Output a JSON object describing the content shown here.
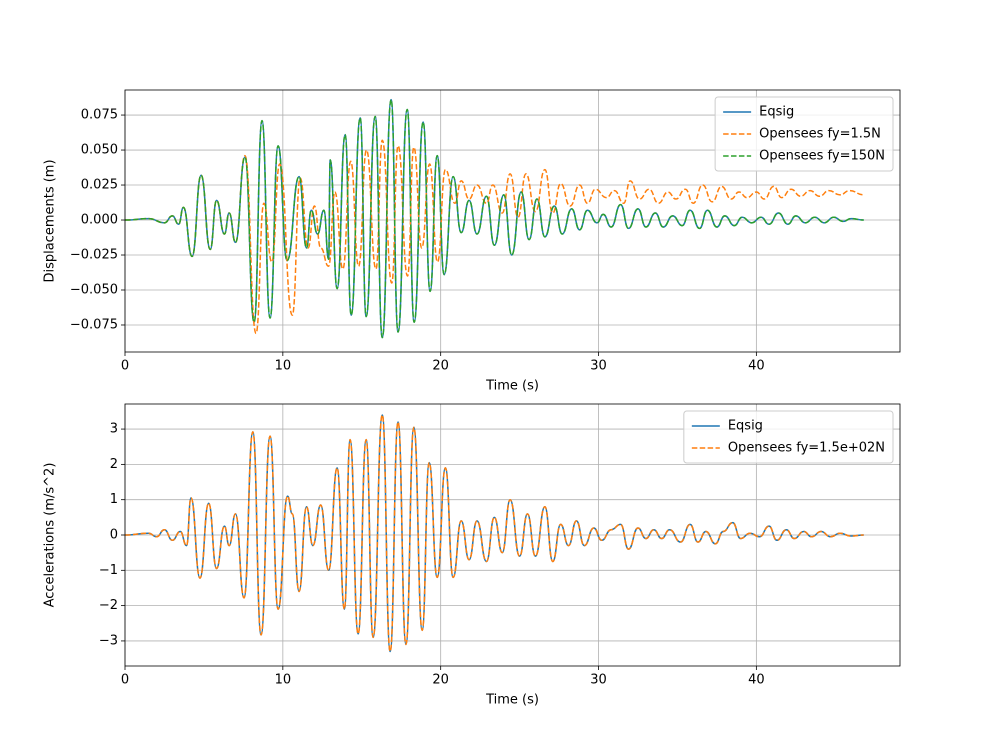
{
  "chart_data": [
    {
      "type": "line",
      "xlabel": "Time (s)",
      "ylabel": "Displacements (m)",
      "xlim": [
        0,
        49.1
      ],
      "ylim": [
        -0.0943,
        0.0929
      ],
      "xticks": [
        0,
        10,
        20,
        30,
        40
      ],
      "yticks": [
        {
          "value": -0.075,
          "label": "−0.075"
        },
        {
          "value": -0.05,
          "label": "−0.050"
        },
        {
          "value": -0.025,
          "label": "−0.025"
        },
        {
          "value": 0,
          "label": "0.000"
        },
        0.025,
        {
          "value": 0.05,
          "label": "0.050"
        },
        0.075
      ],
      "grid": true,
      "legend": "upper right",
      "series": [
        {
          "name": "Eqsig",
          "color": "#1f77b4",
          "dash": "solid",
          "x": [
            0,
            1.5,
            2.5,
            3.0,
            3.4,
            3.7,
            4.25,
            4.82,
            5.4,
            5.8,
            6.3,
            6.6,
            7.0,
            7.6,
            8.18,
            8.68,
            9.19,
            9.7,
            10.27,
            11.03,
            11.5,
            11.8,
            12.2,
            12.6,
            12.9,
            13.0,
            13.44,
            13.95,
            14.33,
            14.9,
            15.28,
            15.85,
            16.3,
            16.86,
            17.3,
            17.88,
            18.32,
            18.89,
            19.33,
            19.78,
            20.22,
            20.79,
            21.3,
            21.8,
            22.3,
            22.9,
            23.4,
            24.0,
            24.5,
            25.1,
            25.6,
            26.1,
            26.6,
            27.2,
            27.7,
            28.3,
            28.8,
            29.3,
            29.9,
            30.3,
            30.8,
            31.4,
            31.9,
            32.5,
            33.0,
            33.6,
            34.1,
            34.7,
            35.3,
            35.8,
            36.4,
            36.9,
            37.5,
            38.0,
            38.6,
            39.1,
            39.7,
            40.3,
            40.8,
            41.4,
            42.0,
            42.5,
            43.1,
            43.7,
            44.3,
            44.9,
            45.5,
            46.0,
            46.8
          ],
          "values": [
            0,
            0.001,
            -0.002,
            0.003,
            -0.003,
            0.009,
            -0.026,
            0.032,
            -0.021,
            0.014,
            -0.01,
            0.005,
            -0.016,
            0.045,
            -0.073,
            0.071,
            -0.07,
            0.053,
            -0.029,
            0.031,
            -0.02,
            0.007,
            -0.01,
            0.007,
            -0.028,
            0.043,
            -0.049,
            0.061,
            -0.068,
            0.073,
            -0.069,
            0.074,
            -0.084,
            0.086,
            -0.08,
            0.079,
            -0.073,
            0.07,
            -0.051,
            0.046,
            -0.039,
            0.031,
            -0.009,
            0.014,
            -0.01,
            0.017,
            -0.018,
            0.018,
            -0.025,
            0.02,
            -0.014,
            0.015,
            -0.012,
            0.01,
            -0.01,
            0.008,
            -0.007,
            0.007,
            -0.002,
            0.004,
            -0.005,
            0.011,
            -0.006,
            0.008,
            -0.005,
            0.005,
            -0.005,
            0.003,
            -0.004,
            0.007,
            -0.006,
            0.007,
            -0.005,
            0.003,
            -0.004,
            0.002,
            -0.002,
            0.002,
            -0.003,
            0.005,
            -0.003,
            0.003,
            -0.002,
            0.002,
            -0.002,
            0.002,
            -0.001,
            0.001,
            0
          ]
        },
        {
          "name": "Opensees fy=1.5N",
          "color": "#ff7f0e",
          "dash": "dashed",
          "x": [
            0,
            1.5,
            2.5,
            3.0,
            3.4,
            3.7,
            4.25,
            4.82,
            5.4,
            5.8,
            6.3,
            6.6,
            7.0,
            7.6,
            8.3,
            8.8,
            9.3,
            9.8,
            10.6,
            11.1,
            11.6,
            12.0,
            12.4,
            12.9,
            13.3,
            13.8,
            14.3,
            14.8,
            15.3,
            15.9,
            16.3,
            16.9,
            17.3,
            17.9,
            18.3,
            18.8,
            19.3,
            19.8,
            20.3,
            20.9,
            21.3,
            21.8,
            22.3,
            22.9,
            23.3,
            23.9,
            24.4,
            24.9,
            25.4,
            26.0,
            26.6,
            27.1,
            27.6,
            28.2,
            28.8,
            29.3,
            29.8,
            30.5,
            31.0,
            31.6,
            32.0,
            32.6,
            33.2,
            33.8,
            34.4,
            34.9,
            35.5,
            36.0,
            36.6,
            37.2,
            37.8,
            38.4,
            38.9,
            39.4,
            40.0,
            40.5,
            41.1,
            41.6,
            42.2,
            42.8,
            43.4,
            44.0,
            44.6,
            45.3,
            45.9,
            46.8
          ],
          "values": [
            0,
            0.001,
            -0.002,
            0.003,
            -0.003,
            0.009,
            -0.026,
            0.032,
            -0.021,
            0.014,
            -0.01,
            0.005,
            -0.016,
            0.046,
            -0.081,
            0.012,
            -0.03,
            0.04,
            -0.068,
            0.03,
            -0.02,
            0.01,
            -0.02,
            -0.033,
            0.02,
            -0.035,
            0.042,
            -0.033,
            0.05,
            -0.035,
            0.057,
            -0.045,
            0.053,
            -0.04,
            0.052,
            -0.02,
            0.04,
            -0.03,
            0.036,
            0.012,
            0.028,
            0.015,
            0.025,
            0.012,
            0.025,
            0.005,
            0.033,
            0.002,
            0.033,
            0.006,
            0.036,
            0.005,
            0.026,
            0.01,
            0.025,
            0.012,
            0.022,
            0.016,
            0.021,
            0.012,
            0.028,
            0.015,
            0.022,
            0.012,
            0.02,
            0.015,
            0.022,
            0.012,
            0.025,
            0.013,
            0.024,
            0.015,
            0.02,
            0.016,
            0.02,
            0.015,
            0.024,
            0.016,
            0.022,
            0.017,
            0.021,
            0.017,
            0.021,
            0.018,
            0.021,
            0.018
          ]
        },
        {
          "name": "Opensees fy=150N",
          "color": "#2ca02c",
          "dash": "dashed",
          "x": [
            0,
            1.5,
            2.5,
            3.0,
            3.4,
            3.7,
            4.25,
            4.82,
            5.4,
            5.8,
            6.3,
            6.6,
            7.0,
            7.6,
            8.18,
            8.68,
            9.19,
            9.7,
            10.27,
            11.03,
            11.5,
            11.8,
            12.2,
            12.6,
            12.9,
            13.0,
            13.44,
            13.95,
            14.33,
            14.9,
            15.28,
            15.85,
            16.3,
            16.86,
            17.3,
            17.88,
            18.32,
            18.89,
            19.33,
            19.78,
            20.22,
            20.79,
            21.3,
            21.8,
            22.3,
            22.9,
            23.4,
            24.0,
            24.5,
            25.1,
            25.6,
            26.1,
            26.6,
            27.2,
            27.7,
            28.3,
            28.8,
            29.3,
            29.9,
            30.3,
            30.8,
            31.4,
            31.9,
            32.5,
            33.0,
            33.6,
            34.1,
            34.7,
            35.3,
            35.8,
            36.4,
            36.9,
            37.5,
            38.0,
            38.6,
            39.1,
            39.7,
            40.3,
            40.8,
            41.4,
            42.0,
            42.5,
            43.1,
            43.7,
            44.3,
            44.9,
            45.5,
            46.0,
            46.8
          ],
          "values": [
            0,
            0.001,
            -0.002,
            0.003,
            -0.003,
            0.009,
            -0.026,
            0.032,
            -0.021,
            0.014,
            -0.01,
            0.005,
            -0.016,
            0.045,
            -0.073,
            0.071,
            -0.07,
            0.053,
            -0.029,
            0.031,
            -0.02,
            0.007,
            -0.01,
            0.007,
            -0.028,
            0.043,
            -0.049,
            0.061,
            -0.068,
            0.073,
            -0.069,
            0.074,
            -0.084,
            0.086,
            -0.08,
            0.079,
            -0.073,
            0.07,
            -0.051,
            0.046,
            -0.039,
            0.031,
            -0.009,
            0.014,
            -0.01,
            0.017,
            -0.018,
            0.018,
            -0.025,
            0.02,
            -0.014,
            0.015,
            -0.012,
            0.01,
            -0.01,
            0.008,
            -0.007,
            0.007,
            -0.002,
            0.004,
            -0.005,
            0.011,
            -0.006,
            0.008,
            -0.005,
            0.005,
            -0.005,
            0.003,
            -0.004,
            0.007,
            -0.006,
            0.007,
            -0.005,
            0.003,
            -0.004,
            0.002,
            -0.002,
            0.002,
            -0.003,
            0.005,
            -0.003,
            0.003,
            -0.002,
            0.002,
            -0.002,
            0.002,
            -0.001,
            0.001,
            0
          ]
        }
      ]
    },
    {
      "type": "line",
      "xlabel": "Time (s)",
      "ylabel": "Accelerations (m/s^2)",
      "xlim": [
        0,
        49.1
      ],
      "ylim": [
        -3.71,
        3.71
      ],
      "xticks": [
        0,
        10,
        20,
        30,
        40
      ],
      "yticks": [
        {
          "value": -3,
          "label": "−3"
        },
        {
          "value": -2,
          "label": "−2"
        },
        {
          "value": -1,
          "label": "−1"
        },
        0,
        1,
        2,
        3
      ],
      "grid": true,
      "legend": "upper right",
      "series": [
        {
          "name": "Eqsig",
          "color": "#1f77b4",
          "dash": "solid",
          "x": [
            0,
            1.5,
            2.0,
            2.5,
            3.0,
            3.5,
            3.9,
            4.18,
            4.75,
            5.3,
            5.8,
            6.3,
            6.6,
            7.0,
            7.54,
            8.1,
            8.62,
            9.19,
            9.7,
            10.3,
            10.6,
            11.03,
            11.5,
            11.9,
            12.4,
            12.9,
            13.44,
            13.9,
            14.26,
            14.77,
            15.28,
            15.72,
            16.3,
            16.8,
            17.3,
            17.8,
            18.3,
            18.83,
            19.27,
            19.78,
            20.3,
            20.79,
            21.3,
            21.8,
            22.3,
            22.9,
            23.4,
            23.9,
            24.4,
            25.0,
            25.5,
            26.0,
            26.6,
            27.1,
            27.6,
            28.1,
            28.6,
            29.1,
            29.7,
            30.2,
            30.8,
            31.4,
            31.9,
            32.5,
            33.0,
            33.5,
            34.0,
            34.5,
            35.2,
            35.8,
            36.3,
            36.8,
            37.4,
            37.9,
            38.5,
            39.0,
            39.6,
            40.2,
            40.8,
            41.3,
            41.9,
            42.4,
            43.0,
            43.5,
            44.1,
            44.7,
            45.3,
            46.0,
            46.8
          ],
          "values": [
            0,
            0.05,
            -0.05,
            0.15,
            -0.15,
            0.1,
            -0.3,
            1.05,
            -1.22,
            0.9,
            -0.95,
            0.25,
            -0.3,
            0.6,
            -1.78,
            2.92,
            -2.83,
            2.8,
            -2.1,
            1.1,
            0.6,
            -1.6,
            0.8,
            -0.3,
            0.85,
            -1.0,
            1.9,
            -2.1,
            2.7,
            -2.8,
            2.7,
            -2.9,
            3.4,
            -3.3,
            3.2,
            -3.1,
            3.05,
            -2.7,
            2.05,
            -1.2,
            1.9,
            -1.2,
            0.4,
            -0.7,
            0.4,
            -0.75,
            0.5,
            -0.5,
            1.0,
            -0.6,
            0.6,
            -0.6,
            0.8,
            -0.75,
            0.3,
            -0.3,
            0.4,
            -0.3,
            0.2,
            -0.15,
            0.15,
            0.3,
            -0.4,
            0.2,
            -0.1,
            0.15,
            -0.1,
            0.15,
            -0.2,
            0.3,
            -0.2,
            0.1,
            -0.25,
            0.1,
            0.35,
            -0.1,
            0.05,
            -0.05,
            0.25,
            -0.15,
            0.15,
            -0.1,
            0.1,
            -0.05,
            0.1,
            -0.05,
            0.05,
            -0.03,
            0
          ]
        },
        {
          "name": "Opensees fy=1.5e+02N",
          "color": "#ff7f0e",
          "dash": "dashed",
          "x": [
            0,
            1.5,
            2.0,
            2.5,
            3.0,
            3.5,
            3.9,
            4.18,
            4.75,
            5.3,
            5.8,
            6.3,
            6.6,
            7.0,
            7.54,
            8.1,
            8.62,
            9.19,
            9.7,
            10.3,
            10.6,
            11.03,
            11.5,
            11.9,
            12.4,
            12.9,
            13.44,
            13.9,
            14.26,
            14.77,
            15.28,
            15.72,
            16.3,
            16.8,
            17.3,
            17.8,
            18.3,
            18.83,
            19.27,
            19.78,
            20.3,
            20.79,
            21.3,
            21.8,
            22.3,
            22.9,
            23.4,
            23.9,
            24.4,
            25.0,
            25.5,
            26.0,
            26.6,
            27.1,
            27.6,
            28.1,
            28.6,
            29.1,
            29.7,
            30.2,
            30.8,
            31.4,
            31.9,
            32.5,
            33.0,
            33.5,
            34.0,
            34.5,
            35.2,
            35.8,
            36.3,
            36.8,
            37.4,
            37.9,
            38.5,
            39.0,
            39.6,
            40.2,
            40.8,
            41.3,
            41.9,
            42.4,
            43.0,
            43.5,
            44.1,
            44.7,
            45.3,
            46.0,
            46.8
          ],
          "values": [
            0,
            0.05,
            -0.05,
            0.15,
            -0.15,
            0.1,
            -0.3,
            1.05,
            -1.22,
            0.9,
            -0.95,
            0.25,
            -0.3,
            0.6,
            -1.78,
            2.92,
            -2.83,
            2.8,
            -2.1,
            1.1,
            0.6,
            -1.6,
            0.8,
            -0.3,
            0.85,
            -1.0,
            1.9,
            -2.1,
            2.7,
            -2.8,
            2.7,
            -2.9,
            3.4,
            -3.3,
            3.2,
            -3.1,
            3.05,
            -2.7,
            2.05,
            -1.2,
            1.9,
            -1.2,
            0.4,
            -0.7,
            0.4,
            -0.75,
            0.5,
            -0.5,
            1.0,
            -0.6,
            0.6,
            -0.6,
            0.8,
            -0.75,
            0.3,
            -0.3,
            0.4,
            -0.3,
            0.2,
            -0.15,
            0.15,
            0.3,
            -0.4,
            0.2,
            -0.1,
            0.15,
            -0.1,
            0.15,
            -0.2,
            0.3,
            -0.2,
            0.1,
            -0.25,
            0.1,
            0.35,
            -0.1,
            0.05,
            -0.05,
            0.25,
            -0.15,
            0.15,
            -0.1,
            0.1,
            -0.05,
            0.1,
            -0.05,
            0.05,
            -0.03,
            0
          ]
        }
      ]
    }
  ]
}
